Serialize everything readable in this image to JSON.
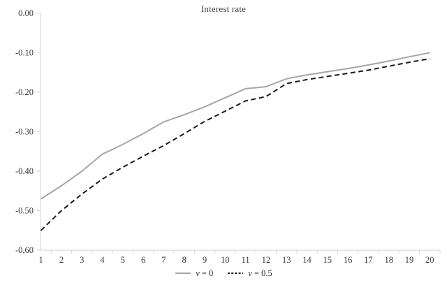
{
  "chart": {
    "title": "Interest rate",
    "axis_color": "#d2d2d2",
    "text_color": "#3a3a3a"
  },
  "legend": {
    "items": [
      {
        "var": "v",
        "rest": " = 0",
        "style": "solid",
        "color": "#a6a6a6"
      },
      {
        "var": "v",
        "rest": " = 0.5",
        "style": "dashed",
        "color": "#1a1a1a"
      }
    ]
  },
  "chart_data": {
    "type": "line",
    "title": "Interest rate",
    "x": [
      1,
      2,
      3,
      4,
      5,
      6,
      7,
      8,
      9,
      10,
      11,
      12,
      13,
      14,
      15,
      16,
      17,
      18,
      19,
      20
    ],
    "xtick_labels": [
      "1",
      "2",
      "3",
      "4",
      "5",
      "6",
      "7",
      "8",
      "9",
      "10",
      "11",
      "12",
      "13",
      "14",
      "15",
      "16",
      "17",
      "18",
      "19",
      "20"
    ],
    "ytick_labels": [
      "0.00",
      "-0.10",
      "-0.20",
      "-0.30",
      "-0.40",
      "-0.50",
      "-0,60"
    ],
    "ytick_values": [
      0,
      -0.1,
      -0.2,
      -0.3,
      -0.4,
      -0.5,
      -0.6
    ],
    "ylim": [
      -0.6,
      0
    ],
    "grid": false,
    "legend_position": "bottom",
    "series": [
      {
        "name": "v = 0",
        "style": "solid",
        "color": "#a6a6a6",
        "values": [
          -0.47,
          -0.437,
          -0.4,
          -0.357,
          -0.332,
          -0.305,
          -0.275,
          -0.257,
          -0.237,
          -0.214,
          -0.191,
          -0.186,
          -0.166,
          -0.156,
          -0.148,
          -0.14,
          -0.131,
          -0.121,
          -0.11,
          -0.1
        ]
      },
      {
        "name": "v = 0.5",
        "style": "dashed",
        "color": "#1a1a1a",
        "values": [
          -0.55,
          -0.5,
          -0.458,
          -0.42,
          -0.39,
          -0.362,
          -0.335,
          -0.305,
          -0.274,
          -0.248,
          -0.222,
          -0.211,
          -0.178,
          -0.168,
          -0.16,
          -0.152,
          -0.144,
          -0.134,
          -0.124,
          -0.115
        ]
      }
    ]
  }
}
